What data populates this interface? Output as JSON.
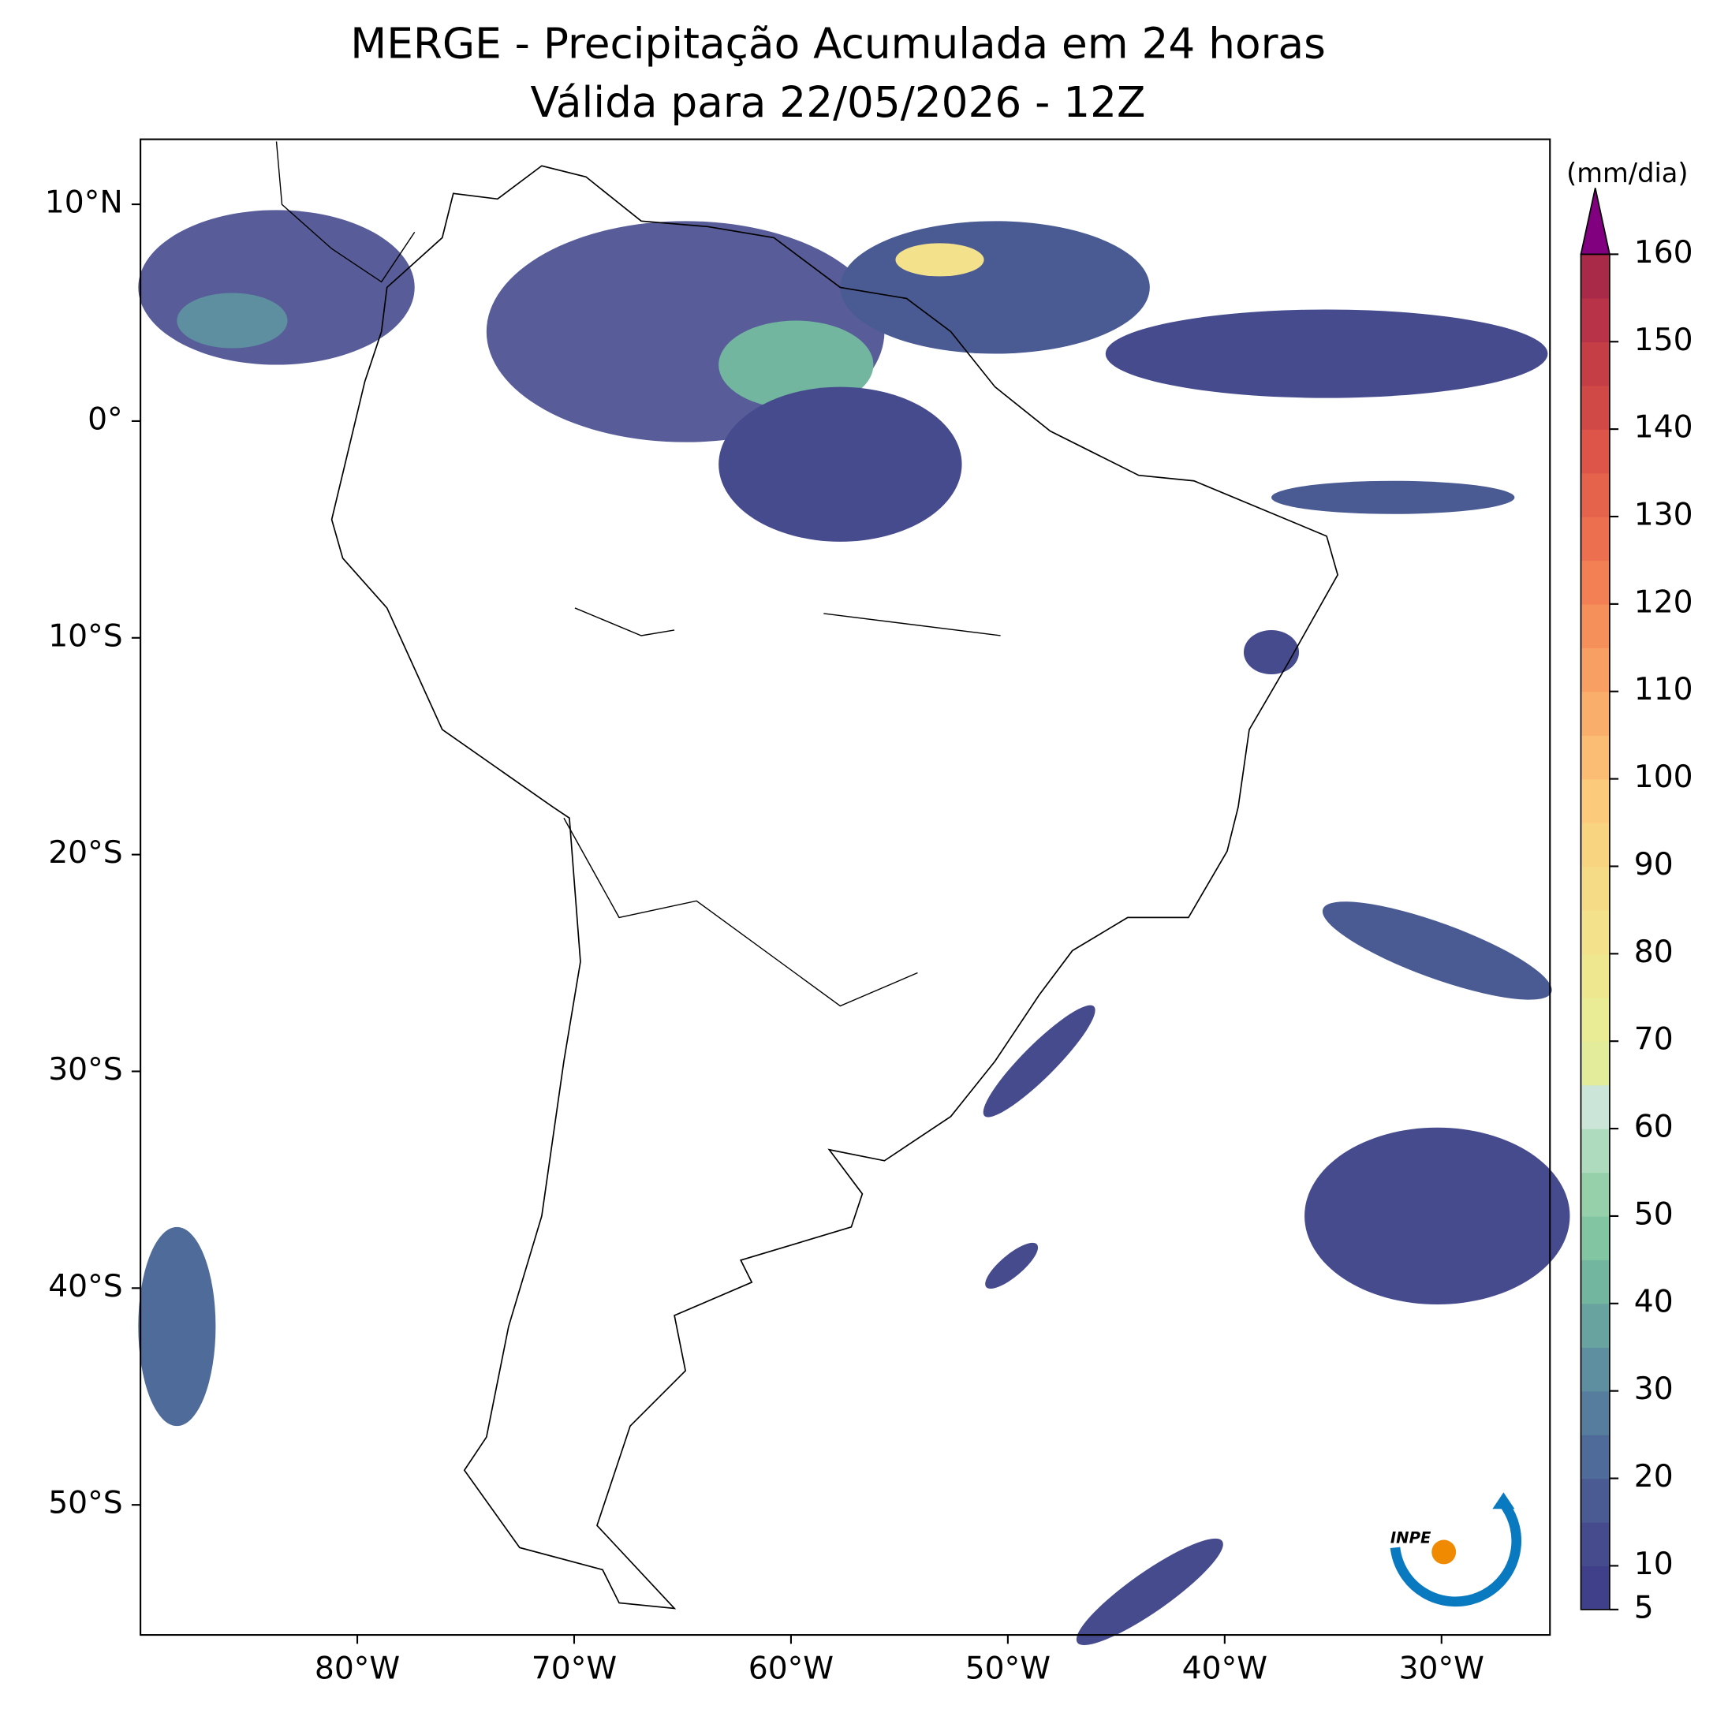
{
  "map": {
    "title": [
      "MERGE - Precipitação Acumulada em 24 horas",
      "Válida para 22/05/2026 - 12Z"
    ],
    "xlim": [
      -90,
      -25
    ],
    "ylim": [
      -56,
      13
    ],
    "xticks": [
      {
        "value": -80,
        "label": "80°W"
      },
      {
        "value": -70,
        "label": "70°W"
      },
      {
        "value": -60,
        "label": "60°W"
      },
      {
        "value": -50,
        "label": "50°W"
      },
      {
        "value": -40,
        "label": "40°W"
      },
      {
        "value": -30,
        "label": "30°W"
      }
    ],
    "yticks": [
      {
        "value": 10,
        "label": "10°N"
      },
      {
        "value": 0,
        "label": "0°"
      },
      {
        "value": -10,
        "label": "10°S"
      },
      {
        "value": -20,
        "label": "20°S"
      },
      {
        "value": -30,
        "label": "30°S"
      },
      {
        "value": -40,
        "label": "40°S"
      },
      {
        "value": -50,
        "label": "50°S"
      }
    ],
    "colorbar": {
      "unit": "(mm/dia)",
      "lim": [
        5,
        160
      ],
      "levels": [
        5,
        10,
        15,
        20,
        25,
        30,
        35,
        40,
        45,
        50,
        55,
        60,
        65,
        70,
        75,
        80,
        85,
        90,
        95,
        100,
        105,
        110,
        115,
        120,
        125,
        130,
        135,
        140,
        145,
        150,
        155,
        160
      ],
      "colors": [
        "#403f89",
        "#464b8e",
        "#4a5b94",
        "#4f6b99",
        "#567d9d",
        "#5e8fa0",
        "#68a3a0",
        "#72b69f",
        "#82c5a2",
        "#96d0ab",
        "#aedbbd",
        "#cbe6d8",
        "#e2ec9a",
        "#e9ec94",
        "#efe78f",
        "#f3e28b",
        "#f6db86",
        "#f9d480",
        "#fbcb7b",
        "#fbbd74",
        "#faae6b",
        "#f89f63",
        "#f6905b",
        "#f28054",
        "#ec704f",
        "#e5624b",
        "#dc5548",
        "#d14946",
        "#c53e46",
        "#b83347",
        "#a92a48"
      ],
      "extend_color": "#800080",
      "ticks": [
        5,
        10,
        20,
        30,
        40,
        50,
        60,
        70,
        80,
        90,
        100,
        110,
        120,
        130,
        140,
        150,
        160
      ]
    },
    "logo": "INPE"
  }
}
